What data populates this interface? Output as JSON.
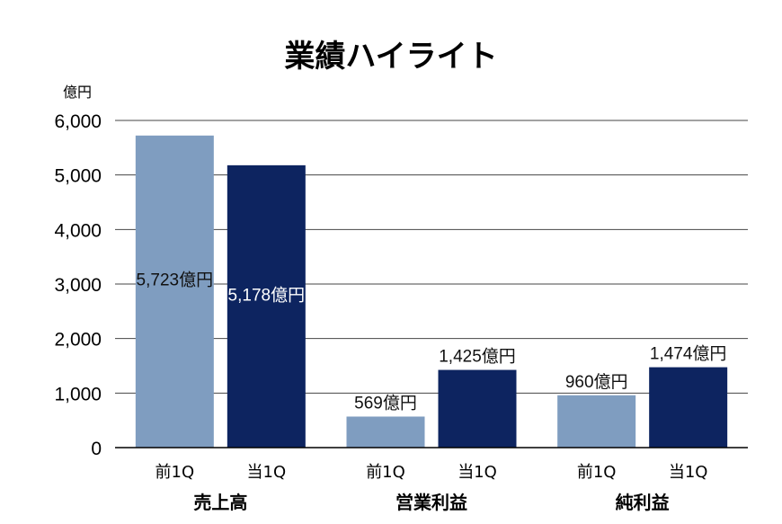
{
  "chart_data": {
    "type": "bar",
    "title": "業績ハイライト",
    "unit": "億円",
    "ylim": [
      0,
      6000
    ],
    "yticks": [
      "0",
      "1,000",
      "2,000",
      "3,000",
      "4,000",
      "5,000",
      "6,000"
    ],
    "grid": true,
    "categories": [
      "売上高",
      "営業利益",
      "純利益"
    ],
    "series": [
      {
        "name": "前1Q",
        "color": "#7f9dc0",
        "values": [
          5723,
          569,
          960
        ],
        "labels": [
          "5,723億円",
          "569億円",
          "960億円"
        ]
      },
      {
        "name": "当1Q",
        "color": "#0d2460",
        "values": [
          5178,
          1425,
          1474
        ],
        "labels": [
          "5,178億円",
          "1,425億円",
          "1,474億円"
        ]
      }
    ]
  }
}
